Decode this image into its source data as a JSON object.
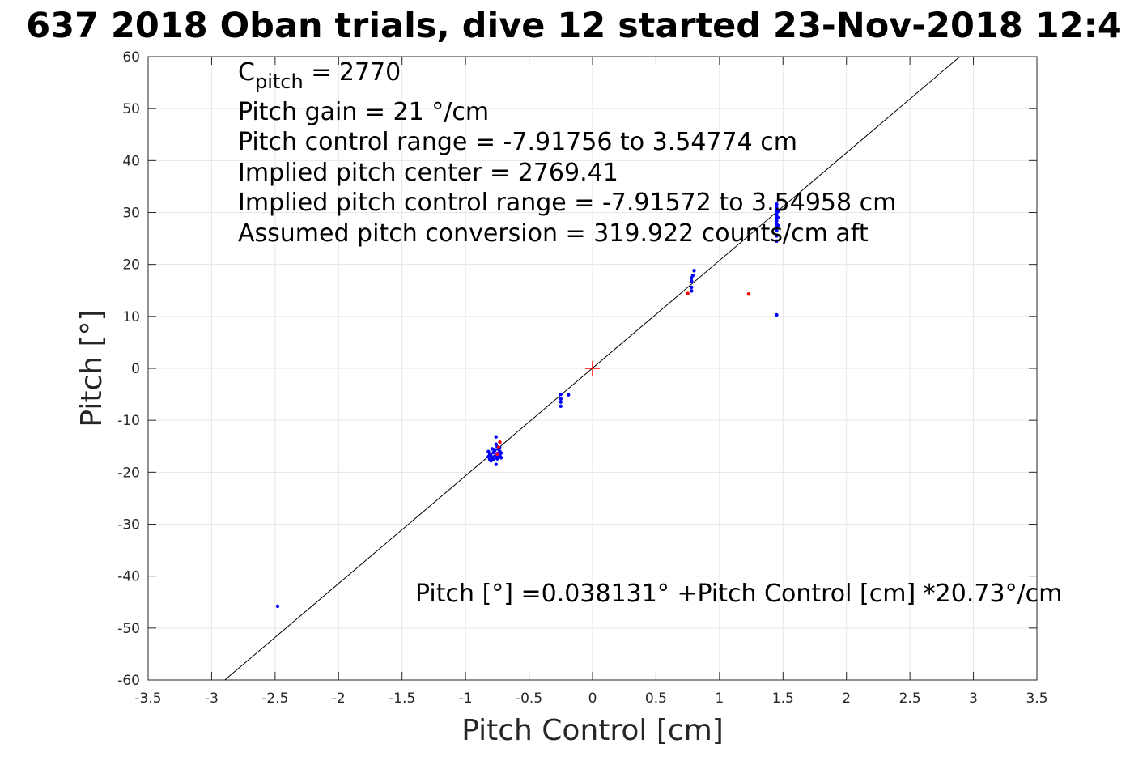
{
  "chart_data": {
    "type": "scatter",
    "title": "637 2018 Oban trials, dive 12 started 23-Nov-2018 12:4",
    "xlabel": "Pitch Control [cm]",
    "ylabel": "Pitch [°]",
    "xlim": [
      -3.5,
      3.5
    ],
    "ylim": [
      -60,
      60
    ],
    "x_ticks": [
      -3.5,
      -3,
      -2.5,
      -2,
      -1.5,
      -1,
      -0.5,
      0,
      0.5,
      1,
      1.5,
      2,
      2.5,
      3,
      3.5
    ],
    "x_tick_labels": [
      "-3.5",
      "-3",
      "-2.5",
      "-2",
      "-1.5",
      "-1",
      "-0.5",
      "0",
      "0.5",
      "1",
      "1.5",
      "2",
      "2.5",
      "3",
      "3.5"
    ],
    "y_ticks": [
      -60,
      -50,
      -40,
      -30,
      -20,
      -10,
      0,
      10,
      20,
      30,
      40,
      50,
      60
    ],
    "y_tick_labels": [
      "-60",
      "-50",
      "-40",
      "-30",
      "-20",
      "-10",
      "0",
      "10",
      "20",
      "30",
      "40",
      "50",
      "60"
    ],
    "grid": true,
    "annotations": {
      "c_pitch_base": "C",
      "c_pitch_sub": "pitch",
      "c_pitch_value": " = 2770",
      "lines": [
        "Pitch gain = 21 °/cm",
        "Pitch control range = -7.91756 to 3.54774 cm",
        "Implied pitch center = 2769.41",
        "Implied pitch control range = -7.91572 to 3.54958 cm",
        "Assumed pitch conversion = 319.922 counts/cm aft"
      ],
      "fit_equation": "Pitch [°] =0.038131° +Pitch Control [cm] *20.73°/cm"
    },
    "fit_line": {
      "intercept": 0.038131,
      "slope": 20.73,
      "color": "#000000"
    },
    "center_marker": {
      "x": 0,
      "y": 0,
      "color": "#ff0000",
      "symbol": "+"
    },
    "series": [
      {
        "color": "#0000ff",
        "points": [
          [
            -2.48,
            -45.8
          ],
          [
            -0.82,
            -16.0
          ],
          [
            -0.82,
            -17.0
          ],
          [
            -0.81,
            -17.5
          ],
          [
            -0.81,
            -16.5
          ],
          [
            -0.8,
            -17.8
          ],
          [
            -0.8,
            -16.8
          ],
          [
            -0.79,
            -15.5
          ],
          [
            -0.79,
            -17.2
          ],
          [
            -0.78,
            -16.2
          ],
          [
            -0.78,
            -17.6
          ],
          [
            -0.77,
            -15.8
          ],
          [
            -0.77,
            -16.9
          ],
          [
            -0.76,
            -13.2
          ],
          [
            -0.76,
            -14.6
          ],
          [
            -0.76,
            -18.5
          ],
          [
            -0.76,
            -17.1
          ],
          [
            -0.75,
            -15.1
          ],
          [
            -0.75,
            -16.4
          ],
          [
            -0.75,
            -17.4
          ],
          [
            -0.74,
            -15.6
          ],
          [
            -0.74,
            -16.6
          ],
          [
            -0.74,
            -17.0
          ],
          [
            -0.73,
            -16.0
          ],
          [
            -0.73,
            -16.8
          ],
          [
            -0.73,
            -15.3
          ],
          [
            -0.72,
            -17.2
          ],
          [
            -0.72,
            -16.3
          ],
          [
            -0.25,
            -5.0
          ],
          [
            -0.25,
            -5.9
          ],
          [
            -0.25,
            -6.5
          ],
          [
            -0.25,
            -7.3
          ],
          [
            -0.19,
            -5.1
          ],
          [
            0.78,
            14.9
          ],
          [
            0.78,
            15.6
          ],
          [
            0.78,
            16.8
          ],
          [
            0.78,
            17.4
          ],
          [
            0.79,
            17.9
          ],
          [
            0.8,
            18.8
          ],
          [
            1.45,
            10.3
          ],
          [
            1.45,
            24.5
          ],
          [
            1.45,
            25.5
          ],
          [
            1.45,
            26.5
          ],
          [
            1.45,
            27.2
          ],
          [
            1.45,
            27.8
          ],
          [
            1.45,
            28.4
          ],
          [
            1.45,
            28.9
          ],
          [
            1.45,
            29.4
          ],
          [
            1.45,
            29.9
          ],
          [
            1.45,
            30.4
          ],
          [
            1.45,
            30.9
          ],
          [
            1.45,
            31.6
          ],
          [
            1.46,
            27.5
          ],
          [
            1.46,
            29.0
          ],
          [
            1.46,
            30.2
          ]
        ]
      },
      {
        "color": "#ff0000",
        "points": [
          [
            -0.75,
            -16.5
          ],
          [
            -0.74,
            -15.2
          ],
          [
            -0.73,
            -14.2
          ],
          [
            0.75,
            14.4
          ],
          [
            1.23,
            14.3
          ]
        ]
      }
    ]
  }
}
